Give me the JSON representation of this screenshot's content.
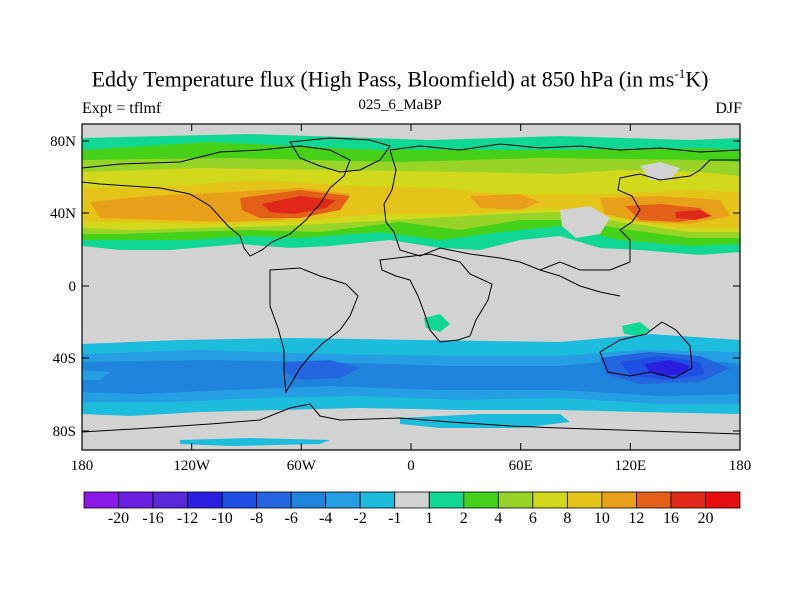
{
  "title": {
    "main": "Eddy Temperature flux (High Pass, Bloomfield) at 850 hPa (in ms",
    "sup": "-1",
    "tail": "K)"
  },
  "experiment": "Expt = tflmf",
  "run_name": "025_6_MaBP",
  "season": "DJF",
  "map": {
    "lat_labels": [
      "80N",
      "40N",
      "0",
      "40S",
      "80S"
    ],
    "lon_labels": [
      "180",
      "120W",
      "60W",
      "0",
      "60E",
      "120E",
      "180"
    ],
    "background_color": "#d2d2d2"
  },
  "colorbar": {
    "labels": [
      "-20",
      "-16",
      "-12",
      "-10",
      "-8",
      "-6",
      "-4",
      "-2",
      "-1",
      "1",
      "2",
      "4",
      "6",
      "8",
      "10",
      "12",
      "16",
      "20"
    ],
    "colors": [
      "#8a19e8",
      "#6a1fe0",
      "#5a28dc",
      "#2a1ee0",
      "#1f4ee4",
      "#2466e0",
      "#1f84dc",
      "#259ee4",
      "#1cbcdc",
      "#d2d2d2",
      "#10d894",
      "#44d118",
      "#98d428",
      "#d2d81c",
      "#e4c418",
      "#e8a018",
      "#e46018",
      "#e02818",
      "#e80e10"
    ]
  }
}
